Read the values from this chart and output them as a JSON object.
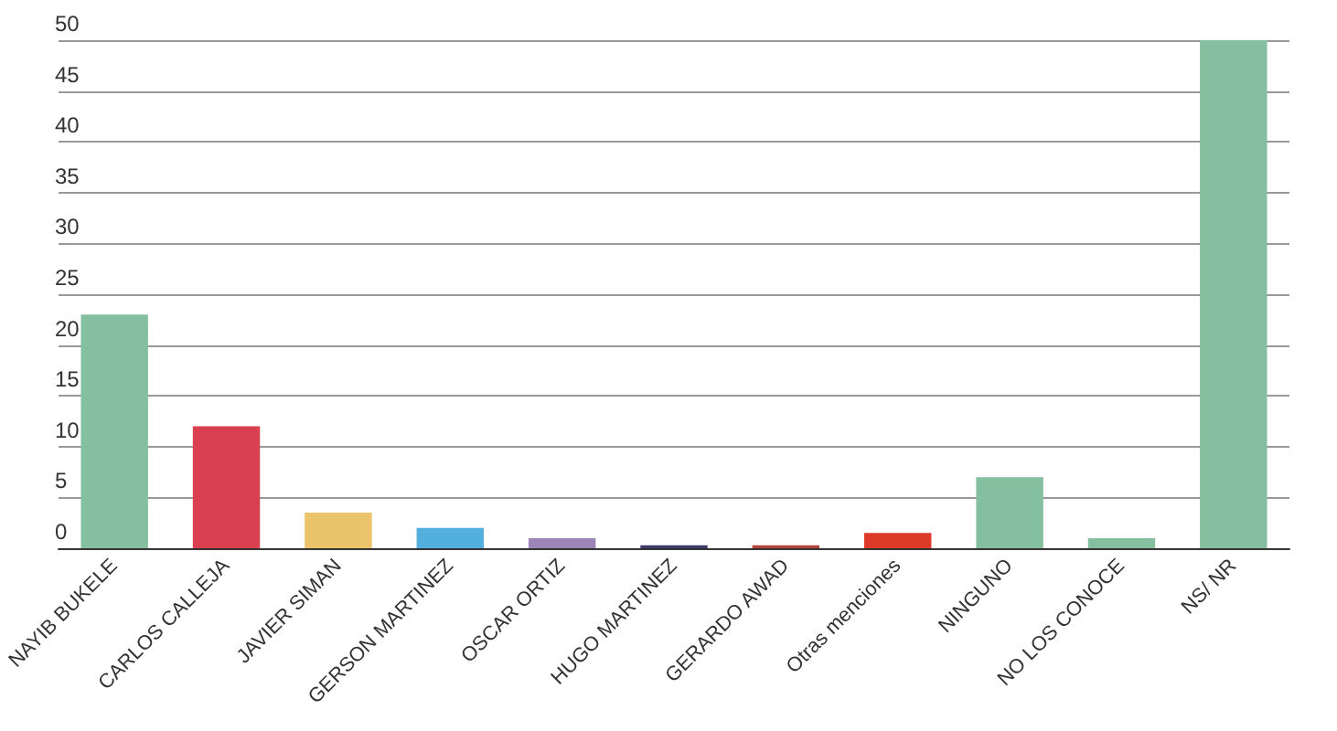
{
  "chart_data": {
    "type": "bar",
    "categories": [
      "NAYIB BUKELE",
      "CARLOS CALLEJA",
      "JAVIER SIMAN",
      "GERSON MARTINEZ",
      "OSCAR ORTIZ",
      "HUGO MARTINEZ",
      "GERARDO AWAD",
      "Otras menciones",
      "NINGUNO",
      "NO LOS CONOCE",
      "NS/ NR"
    ],
    "values": [
      23,
      12,
      3.5,
      2,
      1,
      0.3,
      0.3,
      1.5,
      7,
      1,
      50
    ],
    "colors": [
      "#84bfa0",
      "#d93f4f",
      "#ebc36a",
      "#52afde",
      "#9d85b8",
      "#3d3a6b",
      "#b5413b",
      "#de3a2a",
      "#84bfa0",
      "#84bfa0",
      "#84bfa0"
    ],
    "ylim": [
      0,
      50
    ],
    "yticks": [
      0,
      5,
      10,
      15,
      20,
      25,
      30,
      35,
      40,
      45,
      50
    ],
    "grid": "y"
  }
}
